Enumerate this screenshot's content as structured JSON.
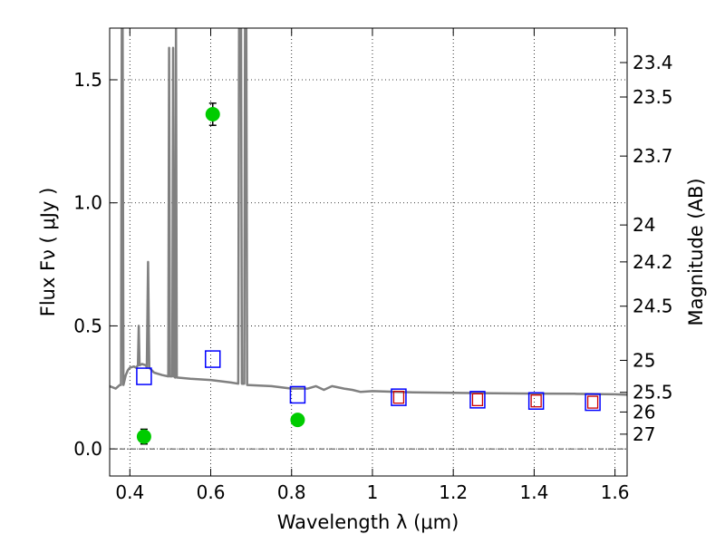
{
  "chart_data": {
    "type": "scatter",
    "xlabel": "Wavelength  λ (μm)",
    "ylabel": "Flux  Fν ( μJy )",
    "ylabel_right": "Magnitude (AB)",
    "xlim": [
      0.35,
      1.63
    ],
    "ylim": [
      -0.11,
      1.71
    ],
    "grid": true,
    "x_ticks": [
      0.4,
      0.6,
      0.8,
      1.0,
      1.2,
      1.4,
      1.6
    ],
    "x_tick_labels": [
      "0.4",
      "0.6",
      "0.8",
      "1",
      "1.2",
      "1.4",
      "1.6"
    ],
    "y_ticks": [
      0.0,
      0.5,
      1.0,
      1.5
    ],
    "y_tick_labels": [
      "0.0",
      "0.5",
      "1.0",
      "1.5"
    ],
    "right_ticks": [
      {
        "label": "23.4",
        "flux": 1.57
      },
      {
        "label": "23.5",
        "flux": 1.43
      },
      {
        "label": "23.7",
        "flux": 1.19
      },
      {
        "label": "24",
        "flux": 0.91
      },
      {
        "label": "24.2",
        "flux": 0.76
      },
      {
        "label": "24.5",
        "flux": 0.58
      },
      {
        "label": "25",
        "flux": 0.36
      },
      {
        "label": "25.5",
        "flux": 0.23
      },
      {
        "label": "26",
        "flux": 0.15
      },
      {
        "label": "27",
        "flux": 0.06
      }
    ],
    "colors": {
      "spectrum": "#808080",
      "observed": "#00cc00",
      "model_open": "#0000ff",
      "model_inner": "#cc0000",
      "errorbar": "#000000"
    },
    "series": [
      {
        "kind": "line",
        "points": [
          [
            0.35,
            0.255
          ],
          [
            0.365,
            0.245
          ],
          [
            0.375,
            0.26
          ],
          [
            0.378,
            0.26
          ],
          [
            0.38,
            1.71
          ],
          [
            0.382,
            1.71
          ],
          [
            0.384,
            0.26
          ],
          [
            0.39,
            0.3
          ],
          [
            0.395,
            0.32
          ],
          [
            0.4,
            0.33
          ],
          [
            0.41,
            0.335
          ],
          [
            0.415,
            0.33
          ],
          [
            0.42,
            0.34
          ],
          [
            0.422,
            0.5
          ],
          [
            0.424,
            0.34
          ],
          [
            0.43,
            0.345
          ],
          [
            0.44,
            0.34
          ],
          [
            0.442,
            0.33
          ],
          [
            0.445,
            0.76
          ],
          [
            0.448,
            0.33
          ],
          [
            0.46,
            0.31
          ],
          [
            0.48,
            0.3
          ],
          [
            0.495,
            0.295
          ],
          [
            0.497,
            1.63
          ],
          [
            0.499,
            0.295
          ],
          [
            0.505,
            0.295
          ],
          [
            0.507,
            1.63
          ],
          [
            0.509,
            0.295
          ],
          [
            0.512,
            0.29
          ],
          [
            0.514,
            1.71
          ],
          [
            0.516,
            0.29
          ],
          [
            0.55,
            0.285
          ],
          [
            0.6,
            0.28
          ],
          [
            0.65,
            0.27
          ],
          [
            0.668,
            0.265
          ],
          [
            0.67,
            1.71
          ],
          [
            0.675,
            1.71
          ],
          [
            0.677,
            0.265
          ],
          [
            0.683,
            0.265
          ],
          [
            0.685,
            1.71
          ],
          [
            0.688,
            1.71
          ],
          [
            0.69,
            0.26
          ],
          [
            0.75,
            0.255
          ],
          [
            0.8,
            0.245
          ],
          [
            0.84,
            0.245
          ],
          [
            0.86,
            0.255
          ],
          [
            0.88,
            0.24
          ],
          [
            0.9,
            0.255
          ],
          [
            0.93,
            0.245
          ],
          [
            0.95,
            0.24
          ],
          [
            0.97,
            0.232
          ],
          [
            1.0,
            0.235
          ],
          [
            1.1,
            0.23
          ],
          [
            1.2,
            0.228
          ],
          [
            1.3,
            0.226
          ],
          [
            1.4,
            0.225
          ],
          [
            1.5,
            0.224
          ],
          [
            1.6,
            0.222
          ],
          [
            1.63,
            0.22
          ]
        ]
      },
      {
        "kind": "errorbar",
        "points": [
          {
            "x": 0.435,
            "y": 0.05,
            "err": 0.03
          },
          {
            "x": 0.605,
            "y": 1.36,
            "err": 0.045
          },
          {
            "x": 0.815,
            "y": 0.118,
            "err": 0.02
          }
        ]
      },
      {
        "kind": "open-square",
        "points": [
          {
            "x": 0.435,
            "y": 0.295
          },
          {
            "x": 0.605,
            "y": 0.365
          },
          {
            "x": 0.815,
            "y": 0.22
          },
          {
            "x": 1.065,
            "y": 0.21
          },
          {
            "x": 1.26,
            "y": 0.2
          },
          {
            "x": 1.405,
            "y": 0.195
          },
          {
            "x": 1.545,
            "y": 0.19
          }
        ]
      },
      {
        "kind": "inner-square",
        "points": [
          {
            "x": 1.065,
            "y": 0.21
          },
          {
            "x": 1.26,
            "y": 0.2
          },
          {
            "x": 1.405,
            "y": 0.195
          },
          {
            "x": 1.545,
            "y": 0.19
          }
        ]
      }
    ]
  }
}
